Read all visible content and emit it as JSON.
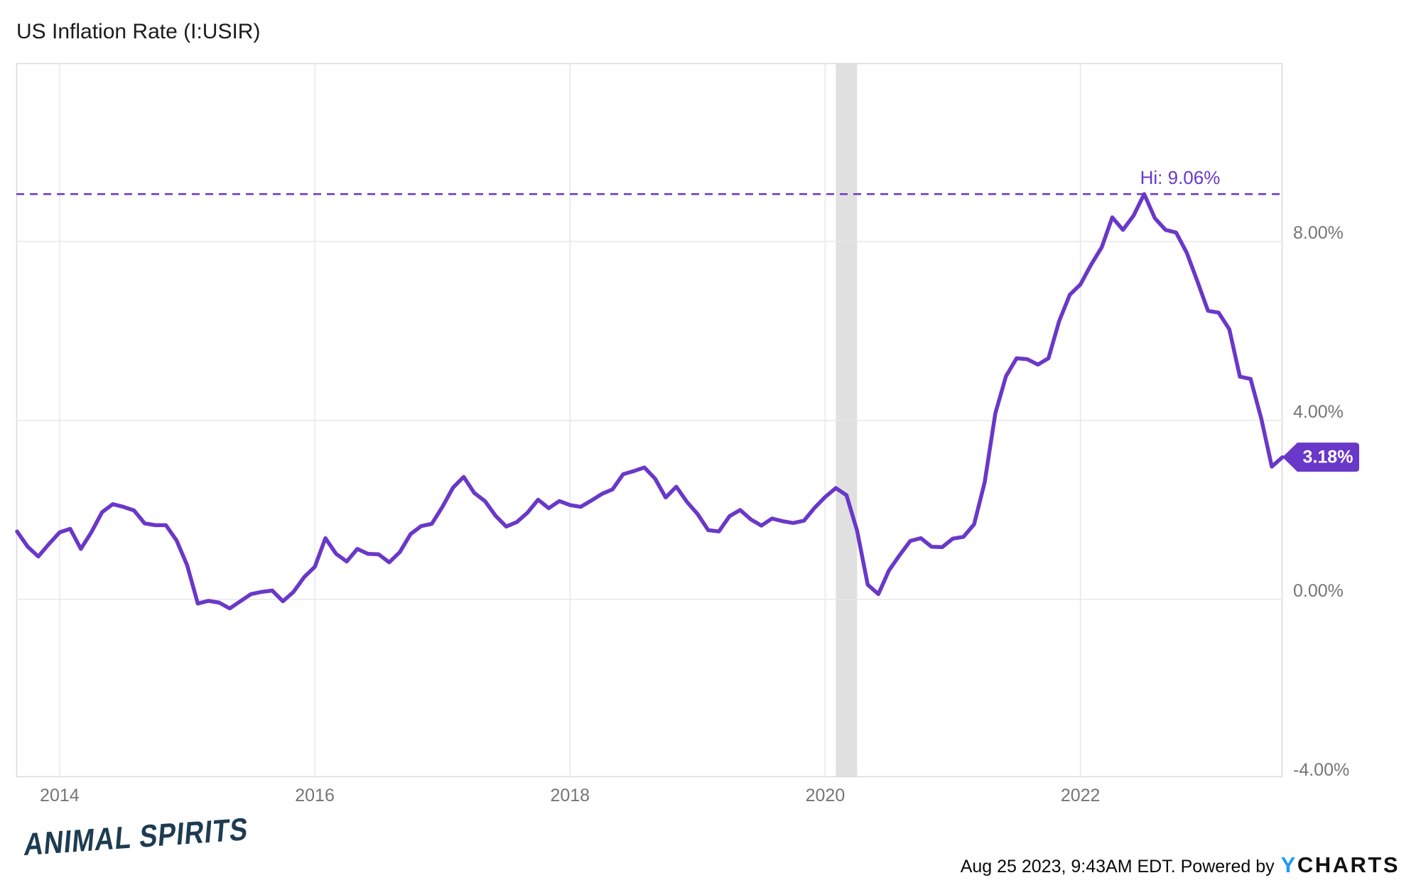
{
  "title": "US Inflation Rate (I:USIR)",
  "watermark": "ANIMAL SPIRITS",
  "footer": {
    "note": "Aug 25 2023, 9:43AM EDT. Powered by",
    "brand_y": "Y",
    "brand_rest": "CHARTS"
  },
  "colors": {
    "accent_purple": "#6A38C8",
    "line_purple": "#6A38C8",
    "ycharts_blue": "#1E9BF0",
    "watermark_navy": "#1D3C52",
    "recession_band_gray": "#E0E0E0",
    "gridline_gray": "#E7E7E7",
    "plot_border_gray": "#D9D9D9",
    "axis_label_gray": "#757575",
    "badge_text_white": "#FFFFFF"
  },
  "chart_data": {
    "type": "line",
    "title": "US Inflation Rate (I:USIR)",
    "frequency": "monthly",
    "x_start": "2013-08",
    "x_end": "2023-07",
    "x_ticks": [
      {
        "year": 2014,
        "label": "2014"
      },
      {
        "year": 2016,
        "label": "2016"
      },
      {
        "year": 2018,
        "label": "2018"
      },
      {
        "year": 2020,
        "label": "2020"
      },
      {
        "year": 2022,
        "label": "2022"
      }
    ],
    "y_ticks": [
      {
        "value": 8,
        "label": "8.00%"
      },
      {
        "value": 4,
        "label": "4.00%"
      },
      {
        "value": 0,
        "label": "0.00%"
      },
      {
        "value": -4,
        "label": "-4.00%"
      }
    ],
    "ylim": [
      -4,
      12
    ],
    "grid": true,
    "high_annotation": {
      "label": "Hi: 9.06%",
      "value": 9.06
    },
    "recession_band": {
      "start": "2020-02",
      "end": "2020-04"
    },
    "last_point": {
      "date": "2023-07",
      "value": 3.18,
      "label": "3.18%"
    },
    "series": [
      {
        "name": "US Inflation Rate",
        "values": [
          1.52,
          1.18,
          0.96,
          1.24,
          1.5,
          1.58,
          1.13,
          1.51,
          1.95,
          2.13,
          2.07,
          1.99,
          1.7,
          1.66,
          1.66,
          1.32,
          0.76,
          -0.09,
          -0.03,
          -0.07,
          -0.2,
          -0.04,
          0.12,
          0.17,
          0.2,
          -0.04,
          0.17,
          0.5,
          0.73,
          1.37,
          1.02,
          0.85,
          1.13,
          1.02,
          1.01,
          0.83,
          1.06,
          1.46,
          1.64,
          1.69,
          2.07,
          2.5,
          2.74,
          2.38,
          2.2,
          1.87,
          1.63,
          1.73,
          1.94,
          2.23,
          2.04,
          2.2,
          2.11,
          2.07,
          2.21,
          2.36,
          2.46,
          2.8,
          2.87,
          2.95,
          2.7,
          2.28,
          2.52,
          2.18,
          1.91,
          1.55,
          1.52,
          1.86,
          2.0,
          1.79,
          1.65,
          1.81,
          1.75,
          1.71,
          1.76,
          2.05,
          2.29,
          2.49,
          2.33,
          1.54,
          0.33,
          0.12,
          0.65,
          0.99,
          1.31,
          1.37,
          1.18,
          1.17,
          1.36,
          1.4,
          1.68,
          2.62,
          4.16,
          4.99,
          5.39,
          5.37,
          5.25,
          5.39,
          6.22,
          6.81,
          7.04,
          7.48,
          7.87,
          8.54,
          8.26,
          8.58,
          9.06,
          8.52,
          8.26,
          8.2,
          7.75,
          7.11,
          6.45,
          6.41,
          6.04,
          4.98,
          4.93,
          4.05,
          2.97,
          3.18
        ]
      }
    ]
  }
}
